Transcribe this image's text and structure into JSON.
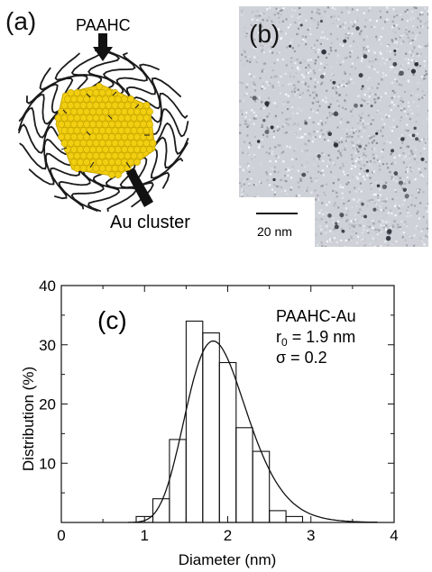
{
  "panel_a": {
    "label": "(a)",
    "ligand_label": "PAAHC",
    "cluster_label": "Au cluster",
    "colors": {
      "gold": "#f2cf10",
      "gold_dark": "#c9a800",
      "ligand": "#1a1a1a"
    }
  },
  "panel_b": {
    "label": "(b)",
    "scale_bar_label": "20 nm",
    "colors": {
      "background": "#c8ccd2",
      "particle": "#2a2e36"
    }
  },
  "chart_data": {
    "type": "bar",
    "panel_label": "(c)",
    "xlabel": "Diameter (nm)",
    "ylabel": "Distribution (%)",
    "xlim": [
      0,
      4
    ],
    "ylim": [
      0,
      40
    ],
    "xticks": [
      "0",
      "1",
      "2",
      "3",
      "4"
    ],
    "yticks": [
      "0",
      "10",
      "20",
      "30",
      "40"
    ],
    "bin_width": 0.2,
    "bins": [
      {
        "x0": 0.9,
        "value": 1
      },
      {
        "x0": 1.1,
        "value": 4
      },
      {
        "x0": 1.3,
        "value": 14
      },
      {
        "x0": 1.5,
        "value": 34
      },
      {
        "x0": 1.7,
        "value": 32
      },
      {
        "x0": 1.9,
        "value": 27
      },
      {
        "x0": 2.1,
        "value": 16
      },
      {
        "x0": 2.3,
        "value": 12
      },
      {
        "x0": 2.5,
        "value": 2
      },
      {
        "x0": 2.7,
        "value": 1
      }
    ],
    "fit": {
      "type": "log-normal",
      "r0": 1.9,
      "sigma": 0.2
    },
    "annotations": [
      "PAAHC-Au",
      "r",
      "0",
      " = 1.9 nm",
      "σ = 0.2"
    ]
  }
}
